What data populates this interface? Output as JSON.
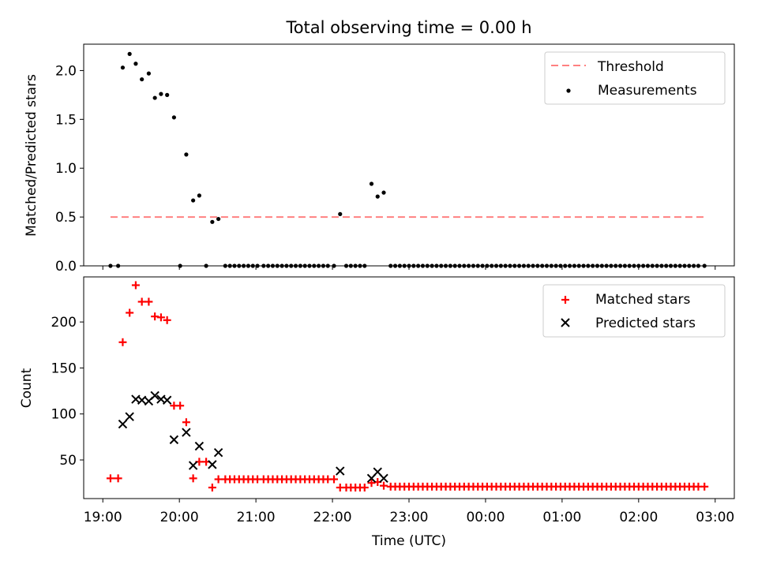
{
  "chart_data": [
    {
      "type": "scatter",
      "title": "Total observing time = 0.00 h",
      "xlabel": "",
      "ylabel": "Matched/Predicted stars",
      "ylim": [
        0,
        2.27
      ],
      "yticks": [
        "0.0",
        "0.5",
        "1.0",
        "1.5",
        "2.0"
      ],
      "threshold": {
        "name": "Threshold",
        "value": 0.5,
        "x_start": 19.1,
        "x_end": 26.86,
        "color": "#ff8080"
      },
      "series": [
        {
          "name": "Measurements",
          "color": "#000000",
          "x": [
            19.1,
            19.2,
            19.26,
            19.35,
            19.43,
            19.51,
            19.6,
            19.68,
            19.76,
            19.84,
            19.93,
            20.01,
            20.09,
            20.18,
            20.26,
            20.35,
            20.43,
            20.51,
            20.6,
            20.66,
            20.72,
            20.78,
            20.84,
            20.9,
            20.96,
            21.02,
            21.1,
            21.16,
            21.22,
            21.28,
            21.34,
            21.4,
            21.46,
            21.52,
            21.58,
            21.64,
            21.7,
            21.76,
            21.82,
            21.88,
            21.94,
            22.02,
            22.1,
            22.18,
            22.24,
            22.3,
            22.36,
            22.42,
            22.51,
            22.59,
            22.67,
            22.76,
            22.82,
            22.88,
            22.94,
            23.0,
            23.06,
            23.12,
            23.18,
            23.24,
            23.3,
            23.36,
            23.42,
            23.48,
            23.54,
            23.6,
            23.66,
            23.72,
            23.78,
            23.84,
            23.9,
            23.96,
            24.02,
            24.08,
            24.14,
            24.2,
            24.26,
            24.32,
            24.38,
            24.44,
            24.5,
            24.56,
            24.62,
            24.68,
            24.74,
            24.8,
            24.86,
            24.92,
            24.98,
            25.04,
            25.1,
            25.16,
            25.22,
            25.28,
            25.34,
            25.4,
            25.46,
            25.52,
            25.58,
            25.64,
            25.7,
            25.76,
            25.82,
            25.88,
            25.94,
            26.0,
            26.06,
            26.12,
            26.18,
            26.24,
            26.3,
            26.36,
            26.42,
            26.48,
            26.54,
            26.6,
            26.66,
            26.72,
            26.78,
            26.86
          ],
          "y": [
            0,
            0,
            2.03,
            2.17,
            2.07,
            1.91,
            1.97,
            1.72,
            1.76,
            1.75,
            1.52,
            0,
            1.14,
            0.67,
            0.72,
            0,
            0.45,
            0.48,
            0,
            0,
            0,
            0,
            0,
            0,
            0,
            0,
            0,
            0,
            0,
            0,
            0,
            0,
            0,
            0,
            0,
            0,
            0,
            0,
            0,
            0,
            0,
            0,
            0.53,
            0,
            0,
            0,
            0,
            0,
            0.84,
            0.71,
            0.75,
            0,
            0,
            0,
            0,
            0,
            0,
            0,
            0,
            0,
            0,
            0,
            0,
            0,
            0,
            0,
            0,
            0,
            0,
            0,
            0,
            0,
            0,
            0,
            0,
            0,
            0,
            0,
            0,
            0,
            0,
            0,
            0,
            0,
            0,
            0,
            0,
            0,
            0,
            0,
            0,
            0,
            0,
            0,
            0,
            0,
            0,
            0,
            0,
            0,
            0,
            0,
            0,
            0,
            0,
            0,
            0,
            0,
            0,
            0,
            0,
            0,
            0,
            0,
            0,
            0,
            0,
            0,
            0,
            0
          ]
        }
      ],
      "legend": "upper right"
    },
    {
      "type": "scatter",
      "xlabel": "Time (UTC)",
      "ylabel": "Count",
      "ylim": [
        8,
        249
      ],
      "yticks": [
        "50",
        "100",
        "150",
        "200"
      ],
      "xlim": [
        18.75,
        27.25
      ],
      "xticks": [
        "19:00",
        "20:00",
        "21:00",
        "22:00",
        "23:00",
        "00:00",
        "01:00",
        "02:00",
        "03:00"
      ],
      "series": [
        {
          "name": "Matched stars",
          "color": "#ff0000",
          "marker": "plus",
          "x": [
            19.1,
            19.2,
            19.26,
            19.35,
            19.43,
            19.51,
            19.6,
            19.68,
            19.76,
            19.84,
            19.93,
            20.01,
            20.09,
            20.18,
            20.26,
            20.35,
            20.43,
            20.51,
            20.6,
            20.66,
            20.72,
            20.78,
            20.84,
            20.9,
            20.96,
            21.02,
            21.1,
            21.16,
            21.22,
            21.28,
            21.34,
            21.4,
            21.46,
            21.52,
            21.58,
            21.64,
            21.7,
            21.76,
            21.82,
            21.88,
            21.94,
            22.02,
            22.1,
            22.18,
            22.24,
            22.3,
            22.36,
            22.42,
            22.51,
            22.59,
            22.67,
            22.76,
            22.82,
            22.88,
            22.94,
            23.0,
            23.06,
            23.12,
            23.18,
            23.24,
            23.3,
            23.36,
            23.42,
            23.48,
            23.54,
            23.6,
            23.66,
            23.72,
            23.78,
            23.84,
            23.9,
            23.96,
            24.02,
            24.08,
            24.14,
            24.2,
            24.26,
            24.32,
            24.38,
            24.44,
            24.5,
            24.56,
            24.62,
            24.68,
            24.74,
            24.8,
            24.86,
            24.92,
            24.98,
            25.04,
            25.1,
            25.16,
            25.22,
            25.28,
            25.34,
            25.4,
            25.46,
            25.52,
            25.58,
            25.64,
            25.7,
            25.76,
            25.82,
            25.88,
            25.94,
            26.0,
            26.06,
            26.12,
            26.18,
            26.24,
            26.3,
            26.36,
            26.42,
            26.48,
            26.54,
            26.6,
            26.66,
            26.72,
            26.78,
            26.86
          ],
          "y": [
            30,
            30,
            178,
            210,
            240,
            222,
            222,
            206,
            205,
            202,
            109,
            109,
            91,
            30,
            48,
            48,
            20,
            29,
            29,
            29,
            29,
            29,
            29,
            29,
            29,
            29,
            29,
            29,
            29,
            29,
            29,
            29,
            29,
            29,
            29,
            29,
            29,
            29,
            29,
            29,
            29,
            29,
            20,
            20,
            20,
            20,
            20,
            20,
            25,
            26,
            22,
            21,
            21,
            21,
            21,
            21,
            21,
            21,
            21,
            21,
            21,
            21,
            21,
            21,
            21,
            21,
            21,
            21,
            21,
            21,
            21,
            21,
            21,
            21,
            21,
            21,
            21,
            21,
            21,
            21,
            21,
            21,
            21,
            21,
            21,
            21,
            21,
            21,
            21,
            21,
            21,
            21,
            21,
            21,
            21,
            21,
            21,
            21,
            21,
            21,
            21,
            21,
            21,
            21,
            21,
            21,
            21,
            21,
            21,
            21,
            21,
            21,
            21,
            21,
            21,
            21,
            21,
            21,
            21,
            21
          ]
        },
        {
          "name": "Predicted stars",
          "color": "#000000",
          "marker": "x",
          "x": [
            19.26,
            19.35,
            19.43,
            19.51,
            19.6,
            19.68,
            19.76,
            19.84,
            19.93,
            20.09,
            20.18,
            20.26,
            20.43,
            20.51,
            22.1,
            22.51,
            22.59,
            22.67
          ],
          "y": [
            89,
            97,
            116,
            115,
            114,
            120,
            116,
            115,
            72,
            80,
            44,
            65,
            45,
            58,
            38,
            30,
            37,
            30
          ]
        }
      ],
      "legend": "upper right"
    }
  ]
}
